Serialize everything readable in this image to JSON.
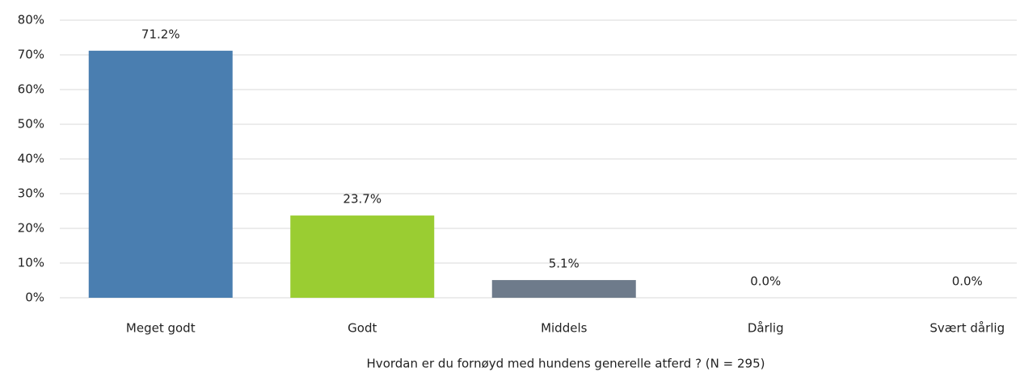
{
  "chart_data": {
    "type": "bar",
    "x_label": "Hvordan er du fornøyd med hundens generelle atferd ?  (N = 295)",
    "categories": [
      "Meget godt",
      "Godt",
      "Middels",
      "Dårlig",
      "Svært dårlig"
    ],
    "values": [
      71.2,
      23.7,
      5.1,
      0.0,
      0.0
    ],
    "value_labels": [
      "71.2%",
      "23.7%",
      "5.1%",
      "0.0%",
      "0.0%"
    ],
    "colors": [
      "#4a7eb0",
      "#9acd32",
      "#6e7b8b",
      "#4a7eb0",
      "#4a7eb0"
    ],
    "ylim": [
      0,
      80
    ],
    "yticks": [
      {
        "value": 0,
        "label": "0%"
      },
      {
        "value": 10,
        "label": "10%"
      },
      {
        "value": 20,
        "label": "20%"
      },
      {
        "value": 30,
        "label": "30%"
      },
      {
        "value": 40,
        "label": "40%"
      },
      {
        "value": 50,
        "label": "50%"
      },
      {
        "value": 60,
        "label": "60%"
      },
      {
        "value": 70,
        "label": "70%"
      },
      {
        "value": 80,
        "label": "80%"
      }
    ],
    "grid": true
  }
}
